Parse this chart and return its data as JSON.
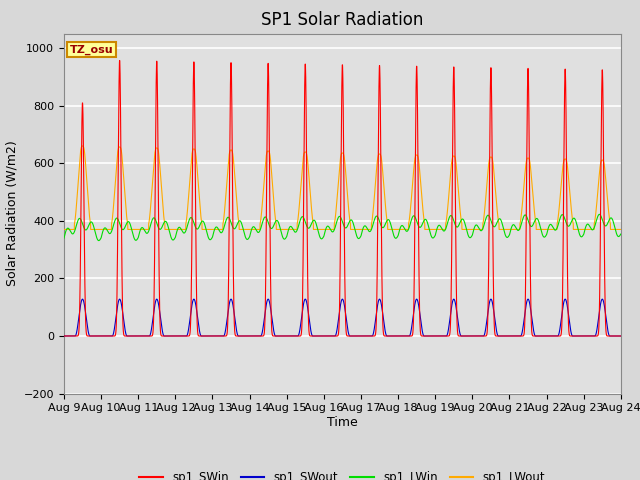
{
  "title": "SP1 Solar Radiation",
  "xlabel": "Time",
  "ylabel": "Solar Radiation (W/m2)",
  "ylim": [
    -200,
    1050
  ],
  "yticks": [
    -200,
    0,
    200,
    400,
    600,
    800,
    1000
  ],
  "n_days": 15,
  "points_per_day": 288,
  "colors": {
    "sp1_SWin": "#ff0000",
    "sp1_SWout": "#0000cc",
    "sp1_LWin": "#00dd00",
    "sp1_LWout": "#ffaa00"
  },
  "tz_label": "TZ_osu",
  "tz_box_color": "#ffff99",
  "tz_border_color": "#cc8800",
  "background_color": "#e0e0e0",
  "grid_color": "white",
  "x_tick_labels": [
    "Aug 9",
    "Aug 10",
    "Aug 11",
    "Aug 12",
    "Aug 13",
    "Aug 14",
    "Aug 15",
    "Aug 16",
    "Aug 17",
    "Aug 18",
    "Aug 19",
    "Aug 20",
    "Aug 21",
    "Aug 22",
    "Aug 23",
    "Aug 24"
  ],
  "title_fontsize": 12,
  "axis_label_fontsize": 9,
  "tick_fontsize": 8
}
